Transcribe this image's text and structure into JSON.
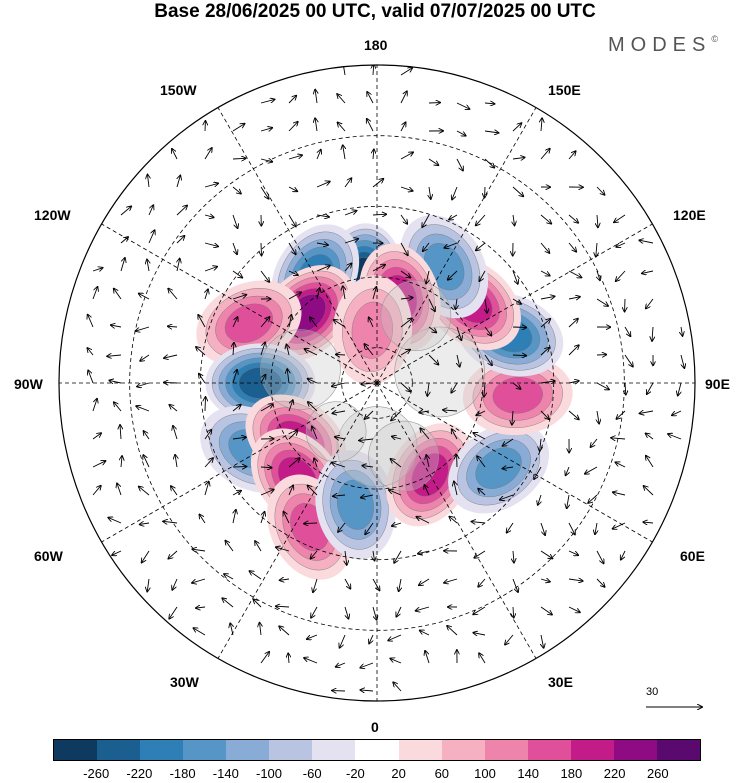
{
  "title": "Base 28/06/2025 00 UTC, valid 07/07/2025 00 UTC",
  "logo": "MODES",
  "logo_mark": "©",
  "lon_labels": {
    "top": "180",
    "bottom": "0",
    "left": "90W",
    "right": "90E",
    "nw1": "150W",
    "nw2": "120W",
    "ne1": "150E",
    "ne2": "120E",
    "sw1": "60W",
    "sw2": "30W",
    "se1": "60E",
    "se2": "30E"
  },
  "vector_scale_label": "30",
  "colorbar": {
    "colors": [
      "#0e3a60",
      "#1a5f8f",
      "#2e7fb5",
      "#5596c7",
      "#89acd6",
      "#b8c4e1",
      "#e4e1f0",
      "#ffffff",
      "#fadadd",
      "#f5b0c2",
      "#ee83ab",
      "#e0509a",
      "#c31b87",
      "#8f0b84",
      "#5a0a6f"
    ],
    "ticks": [
      "-260",
      "-220",
      "-180",
      "-140",
      "-100",
      "-60",
      "-20",
      "20",
      "60",
      "100",
      "140",
      "180",
      "220",
      "260"
    ]
  },
  "anomalies": [
    {
      "lon": -172,
      "lat": 60,
      "value": -220
    },
    {
      "lon": -150,
      "lat": 55,
      "value": -140
    },
    {
      "lon": -135,
      "lat": 62,
      "value": 180
    },
    {
      "lon": -115,
      "lat": 50,
      "value": 100
    },
    {
      "lon": -90,
      "lat": 57,
      "value": -200
    },
    {
      "lon": -62,
      "lat": 50,
      "value": -120
    },
    {
      "lon": -55,
      "lat": 62,
      "value": 160
    },
    {
      "lon": -40,
      "lat": 55,
      "value": 160
    },
    {
      "lon": -25,
      "lat": 45,
      "value": 120
    },
    {
      "lon": -10,
      "lat": 55,
      "value": -100
    },
    {
      "lon": 30,
      "lat": 60,
      "value": 140
    },
    {
      "lon": 55,
      "lat": 48,
      "value": -100
    },
    {
      "lon": 85,
      "lat": 50,
      "value": 100
    },
    {
      "lon": 110,
      "lat": 50,
      "value": -140
    },
    {
      "lon": 130,
      "lat": 55,
      "value": 140
    },
    {
      "lon": 150,
      "lat": 52,
      "value": -120
    },
    {
      "lon": 165,
      "lat": 65,
      "value": 140
    },
    {
      "lon": -175,
      "lat": 75,
      "value": 80
    }
  ]
}
